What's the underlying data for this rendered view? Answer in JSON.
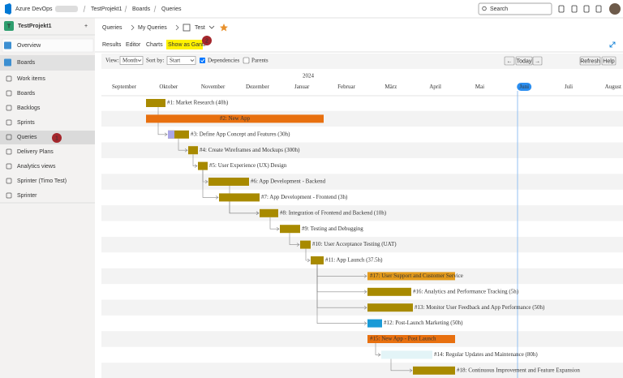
{
  "header": {
    "product": "Azure DevOps",
    "breadcrumb": [
      "TestProjekt1",
      "Boards",
      "Queries"
    ],
    "search_placeholder": "Search"
  },
  "sidebar": {
    "project_initial": "T",
    "project": "TestProjekt1",
    "add": "+",
    "items": [
      "Overview",
      "Boards",
      "Work items",
      "Boards",
      "Backlogs",
      "Sprints",
      "Queries",
      "Delivery Plans",
      "Analytics views",
      "Sprinter (Timo Test)",
      "Sprinter"
    ],
    "badge": 1
  },
  "page": {
    "breadcrumb": [
      "Queries",
      "My Queries",
      "Test"
    ],
    "tabs": [
      "Results",
      "Editor",
      "Charts",
      "Show as Gantt"
    ],
    "badge": 2
  },
  "toolbar": {
    "view_label": "View:",
    "view_value": "Month",
    "sort_label": "Sort by:",
    "sort_value": "Start",
    "dependencies": "Dependencies",
    "parents": "Parents",
    "prev": "←",
    "today": "Today",
    "next": "→",
    "refresh": "Refresh",
    "help": "Help"
  },
  "gantt": {
    "year": "2024",
    "months": [
      "September",
      "Oktober",
      "November",
      "Dezember",
      "Januar",
      "Februar",
      "März",
      "April",
      "Mai",
      "Juni",
      "Juli",
      "August"
    ],
    "rows": [
      "#1: Market Research (40h)",
      "#2: New App",
      "#3: Define App Concept and Features (30h)",
      "#4: Create Wireframes and Mockups (300h)",
      "#5: User Experience (UX) Design",
      "#6: App Development - Backend",
      "#7: App Development - Frontend (3h)",
      "#8: Integration of Frontend and Backend (10h)",
      "#9: Testing and Debugging",
      "#10: User Acceptance Testing (UAT)",
      "#11: App Launch (37.5h)",
      "#17: User Support and Customer Service",
      "#16: Analytics and Performance Tracking (5h)",
      "#13: Monitor User Feedback and App Performance (50h)",
      "#12: Post-Launch Marketing (50h)",
      "#15: New App - Post Launch",
      "#14: Regular Updates and Maintenance (80h)",
      "#18: Continuous Improvement and Feature Expansion"
    ]
  }
}
